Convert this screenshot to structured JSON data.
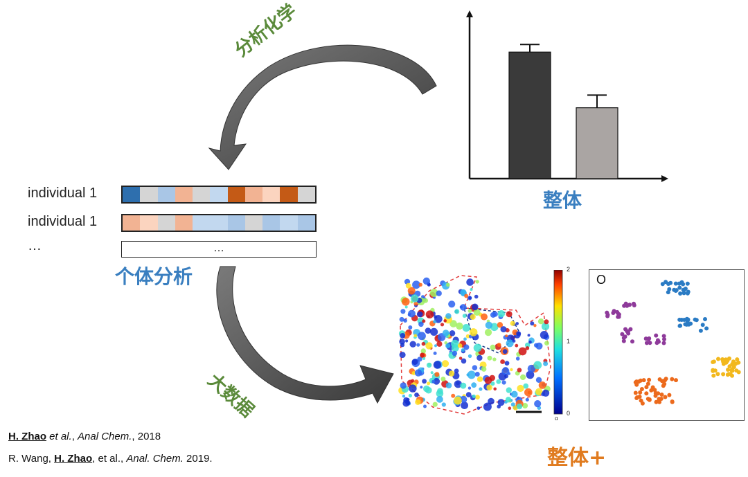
{
  "labels": {
    "analytical_chemistry": "分析化学",
    "whole": "整体",
    "individual_analysis": "个体分析",
    "big_data": "大数据",
    "whole_plus": "整体+"
  },
  "rows": [
    {
      "label": "individual 1",
      "colors": [
        "#2e6fae",
        "#d5d5d5",
        "#a9c6e6",
        "#f2b393",
        "#d5d5d5",
        "#c2d8ef",
        "#c45a16",
        "#f2b393",
        "#fbd4bf",
        "#c45a16",
        "#d5d5d5"
      ]
    },
    {
      "label": "individual 1",
      "colors": [
        "#f2b393",
        "#fbd4bf",
        "#d5d5d5",
        "#f2b393",
        "#c2d8ef",
        "#c2d8ef",
        "#a9c6e6",
        "#d5d5d5",
        "#a9c6e6",
        "#c2d8ef",
        "#a9c6e6"
      ]
    },
    {
      "label": "…",
      "cell_text": "…"
    }
  ],
  "chart_data": {
    "type": "bar",
    "categories": [
      "",
      ""
    ],
    "values": [
      1.0,
      0.56
    ],
    "errors": [
      0.06,
      0.1
    ],
    "colors": [
      "#3a3a3a",
      "#aaa5a3"
    ],
    "ylim": [
      0,
      1.22
    ],
    "xlabel": "",
    "ylabel": ""
  },
  "heatmap": {
    "colorbar_ticks": [
      "2",
      "1",
      "0"
    ],
    "colorbar_unit": "α"
  },
  "scatter": {
    "panel_label": "O",
    "cluster_colors": [
      "#8e3a9a",
      "#2a7bc4",
      "#ec6a1c",
      "#f2b81d"
    ]
  },
  "citations": [
    {
      "author": "H. Zhao",
      "rest1": " et al.",
      "rest2": ", ",
      "journal": "Anal Chem.",
      "year": ", 2018"
    },
    {
      "prefix": "R. Wang, ",
      "author": "H. Zhao",
      "rest1": ", et al., ",
      "journal": "Anal. Chem.",
      "year": " 2019."
    }
  ]
}
